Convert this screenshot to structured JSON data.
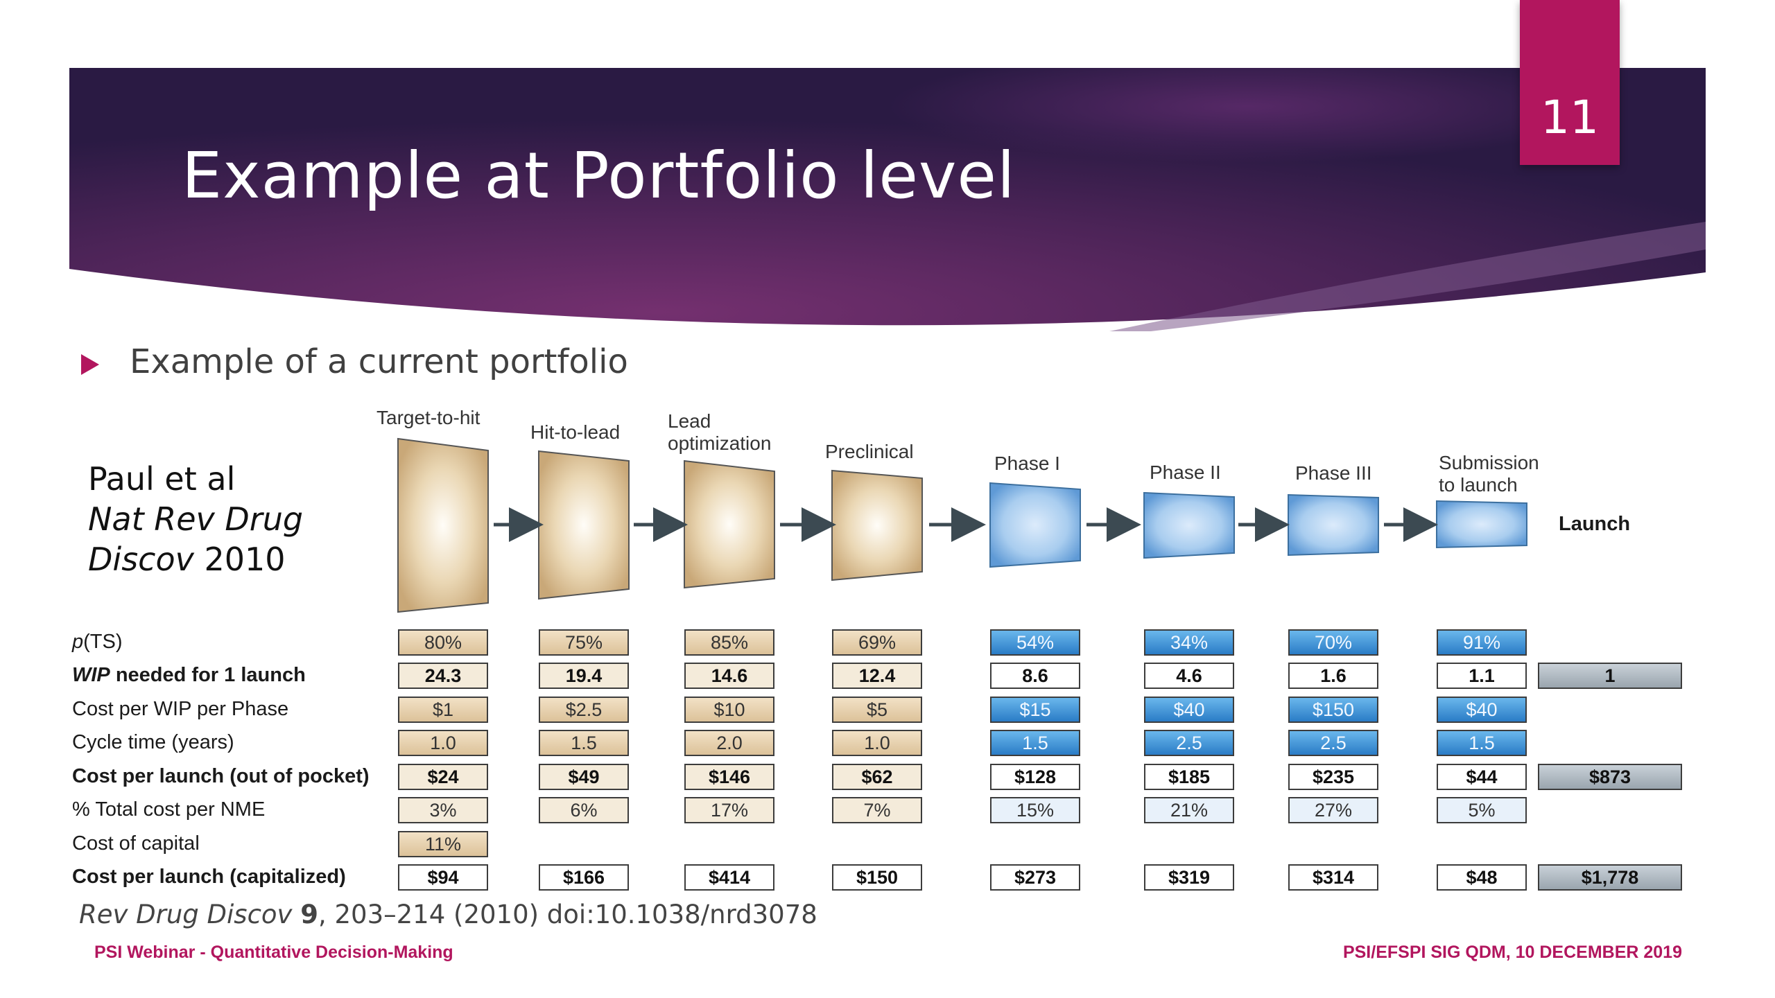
{
  "slide": {
    "title": "Example at Portfolio level",
    "page_number": "11",
    "bullet": "Example of a current portfolio",
    "citation": {
      "line1": "Paul et al",
      "line2": "Nat Rev Drug",
      "line3_italic": "Discov",
      "line3_rest": " 2010"
    },
    "reference": {
      "journal": "Rev Drug Discov",
      "volume": "9",
      "rest": ", 203–214 (2010) doi:10.1038/nrd3078"
    },
    "footer_left": "PSI Webinar - Quantitative Decision-Making",
    "footer_right": "PSI/EFSPI SIG QDM, 10 DECEMBER 2019"
  },
  "figure": {
    "stages": [
      {
        "label": "Target-to-hit",
        "label2": ""
      },
      {
        "label": "Hit-to-lead",
        "label2": ""
      },
      {
        "label": "Lead",
        "label2": "optimization"
      },
      {
        "label": "Preclinical",
        "label2": ""
      },
      {
        "label": "Phase I",
        "label2": ""
      },
      {
        "label": "Phase II",
        "label2": ""
      },
      {
        "label": "Phase III",
        "label2": ""
      },
      {
        "label": "Submission",
        "label2": "to launch"
      }
    ],
    "launch_label": "Launch",
    "row_labels": {
      "pts_p": "p",
      "pts_rest": "(TS)",
      "wip_italic": "WIP",
      "wip_rest": " needed for 1 launch",
      "cost_wip": "Cost per WIP per Phase",
      "cycle": "Cycle time (years)",
      "cost_launch": "Cost per launch (out of pocket)",
      "pct_total": "% Total cost per NME",
      "capital": "Cost of capital",
      "capitalized": "Cost per launch (capitalized)"
    },
    "rows": {
      "pts": [
        "80%",
        "75%",
        "85%",
        "69%",
        "54%",
        "34%",
        "70%",
        "91%"
      ],
      "wip": [
        "24.3",
        "19.4",
        "14.6",
        "12.4",
        "8.6",
        "4.6",
        "1.6",
        "1.1"
      ],
      "cost_wip": [
        "$1",
        "$2.5",
        "$10",
        "$5",
        "$15",
        "$40",
        "$150",
        "$40"
      ],
      "cycle": [
        "1.0",
        "1.5",
        "2.0",
        "1.0",
        "1.5",
        "2.5",
        "2.5",
        "1.5"
      ],
      "cost_launch": [
        "$24",
        "$49",
        "$146",
        "$62",
        "$128",
        "$185",
        "$235",
        "$44"
      ],
      "pct_total": [
        "3%",
        "6%",
        "17%",
        "7%",
        "15%",
        "21%",
        "27%",
        "5%"
      ],
      "capital": [
        "11%"
      ],
      "capitalized": [
        "$94",
        "$166",
        "$414",
        "$150",
        "$273",
        "$319",
        "$314",
        "$48"
      ]
    },
    "totals": {
      "wip": "1",
      "cost_launch": "$873",
      "capitalized": "$1,778"
    },
    "colors": {
      "preclinical_box": "#d9bd93",
      "clinical_box": "#6aa8e3",
      "accent": "#b2165e"
    }
  }
}
